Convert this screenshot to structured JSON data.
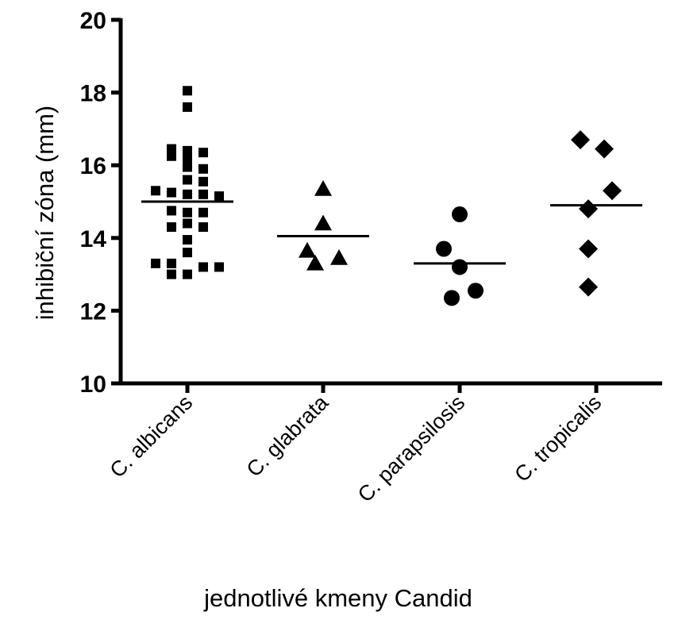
{
  "chart_data": {
    "type": "scatter",
    "subtype": "dot-plot-with-means",
    "title": "",
    "xlabel": "jednotlivé kmeny Candid",
    "ylabel": "inhibiční zóna (mm)",
    "ylim": [
      10,
      20
    ],
    "yticks": [
      10,
      12,
      14,
      16,
      18,
      20
    ],
    "categories": [
      "C. albicans",
      "C. glabrata",
      "C. parapsilosis",
      "C. tropicalis"
    ],
    "grid": false,
    "series": [
      {
        "category": "C. albicans",
        "marker": "square",
        "mean": 15.0,
        "points": [
          {
            "offset": 0,
            "y": 18.05
          },
          {
            "offset": 0,
            "y": 17.6
          },
          {
            "offset": -1,
            "y": 16.45
          },
          {
            "offset": 0,
            "y": 16.4
          },
          {
            "offset": 1,
            "y": 16.35
          },
          {
            "offset": -1,
            "y": 16.25
          },
          {
            "offset": 0,
            "y": 16.2
          },
          {
            "offset": 0,
            "y": 15.95
          },
          {
            "offset": 1,
            "y": 15.9
          },
          {
            "offset": 0,
            "y": 15.6
          },
          {
            "offset": 1,
            "y": 15.55
          },
          {
            "offset": -2,
            "y": 15.3
          },
          {
            "offset": -1,
            "y": 15.25
          },
          {
            "offset": 0,
            "y": 15.2
          },
          {
            "offset": 1,
            "y": 15.2
          },
          {
            "offset": 2,
            "y": 15.15
          },
          {
            "offset": -1,
            "y": 14.75
          },
          {
            "offset": 0,
            "y": 14.7
          },
          {
            "offset": 1,
            "y": 14.7
          },
          {
            "offset": 0,
            "y": 14.4
          },
          {
            "offset": -1,
            "y": 14.3
          },
          {
            "offset": 1,
            "y": 14.3
          },
          {
            "offset": 0,
            "y": 13.95
          },
          {
            "offset": 0,
            "y": 13.6
          },
          {
            "offset": -2,
            "y": 13.3
          },
          {
            "offset": -1,
            "y": 13.3
          },
          {
            "offset": 1,
            "y": 13.2
          },
          {
            "offset": 2,
            "y": 13.2
          },
          {
            "offset": -1,
            "y": 13.0
          },
          {
            "offset": 0,
            "y": 13.0
          }
        ]
      },
      {
        "category": "C. glabrata",
        "marker": "triangle",
        "mean": 14.05,
        "points": [
          {
            "offset": 0,
            "y": 15.35
          },
          {
            "offset": 0,
            "y": 14.4
          },
          {
            "offset": -1,
            "y": 13.65
          },
          {
            "offset": 1,
            "y": 13.45
          },
          {
            "offset": -0.5,
            "y": 13.3
          }
        ]
      },
      {
        "category": "C. parapsilosis",
        "marker": "circle",
        "mean": 13.3,
        "points": [
          {
            "offset": 0,
            "y": 14.65
          },
          {
            "offset": -1,
            "y": 13.7
          },
          {
            "offset": 0,
            "y": 13.2
          },
          {
            "offset": 1,
            "y": 12.55
          },
          {
            "offset": -0.5,
            "y": 12.35
          }
        ]
      },
      {
        "category": "C. tropicalis",
        "marker": "diamond",
        "mean": 14.9,
        "points": [
          {
            "offset": -1,
            "y": 16.7
          },
          {
            "offset": 0.5,
            "y": 16.45
          },
          {
            "offset": 1,
            "y": 15.3
          },
          {
            "offset": -0.5,
            "y": 14.8
          },
          {
            "offset": -0.5,
            "y": 13.7
          },
          {
            "offset": -0.5,
            "y": 12.65
          }
        ]
      }
    ]
  }
}
